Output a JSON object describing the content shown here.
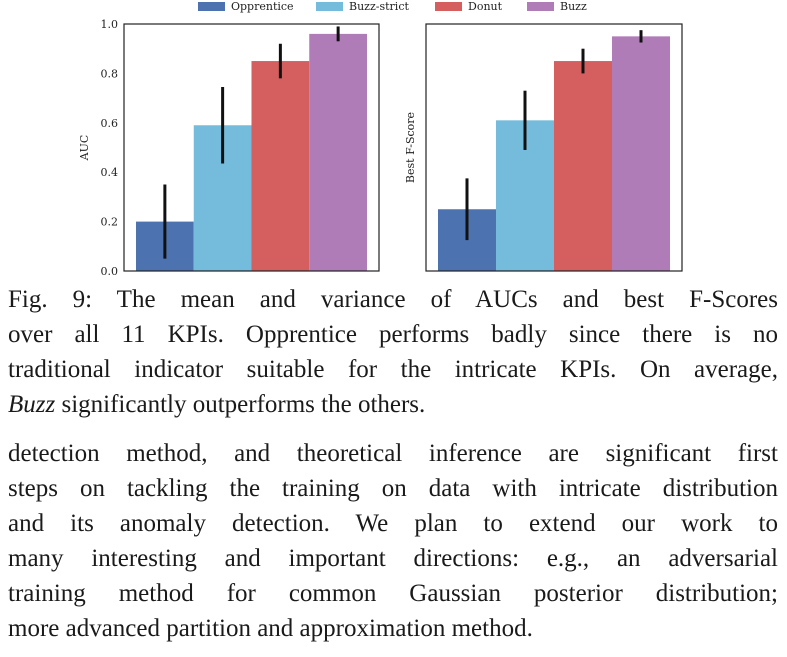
{
  "chart_data": [
    {
      "type": "bar",
      "categories": [
        "Opprentice",
        "Buzz-strict",
        "Donut",
        "Buzz"
      ],
      "values": [
        0.2,
        0.59,
        0.85,
        0.96
      ],
      "error": [
        0.15,
        0.155,
        0.07,
        0.03
      ],
      "ylabel": "AUC",
      "ylim": [
        0,
        1.0
      ],
      "yticks": [
        "0.0",
        "0.2",
        "0.4",
        "0.6",
        "0.8",
        "1.0"
      ],
      "colors": [
        "#4c72b0",
        "#74bbdc",
        "#d55e5e",
        "#b07cb8"
      ],
      "grid": false,
      "legend": "top-center"
    },
    {
      "type": "bar",
      "categories": [
        "Opprentice",
        "Buzz-strict",
        "Donut",
        "Buzz"
      ],
      "values": [
        0.25,
        0.61,
        0.85,
        0.95
      ],
      "error": [
        0.125,
        0.12,
        0.05,
        0.025
      ],
      "ylabel": "Best F-Score",
      "ylim": [
        0,
        1.0
      ],
      "colors": [
        "#4c72b0",
        "#74bbdc",
        "#d55e5e",
        "#b07cb8"
      ],
      "grid": false
    }
  ],
  "legend": [
    {
      "label": "Opprentice",
      "color": "#4c72b0"
    },
    {
      "label": "Buzz-strict",
      "color": "#74bbdc"
    },
    {
      "label": "Donut",
      "color": "#d55e5e"
    },
    {
      "label": "Buzz",
      "color": "#b07cb8"
    }
  ],
  "caption": {
    "prefix": "Fig. 9: The mean and variance of AUCs and best F-Scores",
    "line2": "over all 11 KPIs. Opprentice performs badly since there is no",
    "line3": "traditional indicator suitable for the intricate KPIs. On average,",
    "emph": "Buzz",
    "line4_rest": " significantly outperforms the others."
  },
  "body_lines": [
    "detection method, and theoretical inference are significant first",
    "steps on tackling the training on data with intricate distribution",
    "and its anomaly detection. We plan to extend our work to",
    "many interesting and important directions: e.g., an adversarial",
    "training method for common Gaussian posterior distribution;",
    "more advanced partition and approximation method."
  ]
}
